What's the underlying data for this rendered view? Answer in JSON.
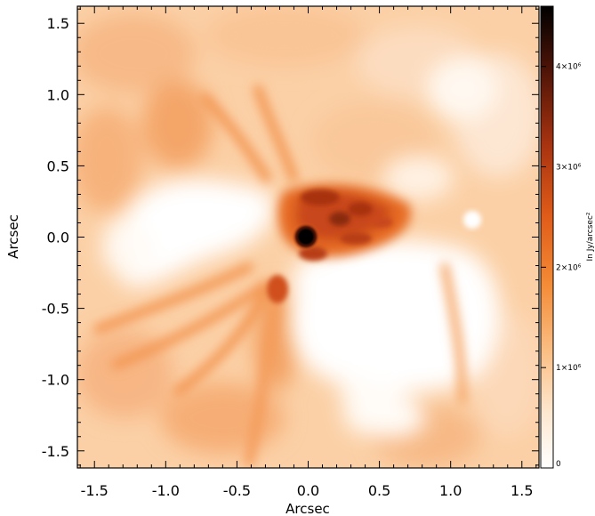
{
  "chart_data": {
    "type": "heatmap",
    "title": "",
    "xlabel": "Arcsec",
    "ylabel": "Arcsec",
    "xlim": [
      -1.62,
      1.62
    ],
    "ylim": [
      -1.62,
      1.62
    ],
    "x_ticks": [
      "-1.5",
      "-1.0",
      "-0.5",
      "0.0",
      "0.5",
      "1.0",
      "1.5"
    ],
    "y_ticks": [
      "1.5",
      "1.0",
      "0.5",
      "0.0",
      "-0.5",
      "-1.0",
      "-1.5"
    ],
    "colorbar": {
      "label": "In Jy/arcsec²",
      "range": [
        0,
        4600000
      ],
      "ticks": [
        {
          "value": 0,
          "label": "0"
        },
        {
          "value": 1000000,
          "label": "1×10⁶"
        },
        {
          "value": 2000000,
          "label": "2×10⁶"
        },
        {
          "value": 3000000,
          "label": "3×10⁶"
        },
        {
          "value": 4000000,
          "label": "4×10⁶"
        }
      ],
      "colormap": [
        "#ffffff",
        "#fddcb6",
        "#f7a55c",
        "#e9661c",
        "#b43a10",
        "#5a1708",
        "#000000"
      ]
    },
    "features": [
      {
        "name": "central source",
        "x": -0.02,
        "y": 0.0,
        "value": 4600000
      },
      {
        "name": "inner ring / spiral arms",
        "x": 0.15,
        "y": 0.05,
        "value": 2800000
      },
      {
        "name": "clump",
        "x": -0.22,
        "y": -0.4,
        "value": 2000000
      }
    ]
  }
}
